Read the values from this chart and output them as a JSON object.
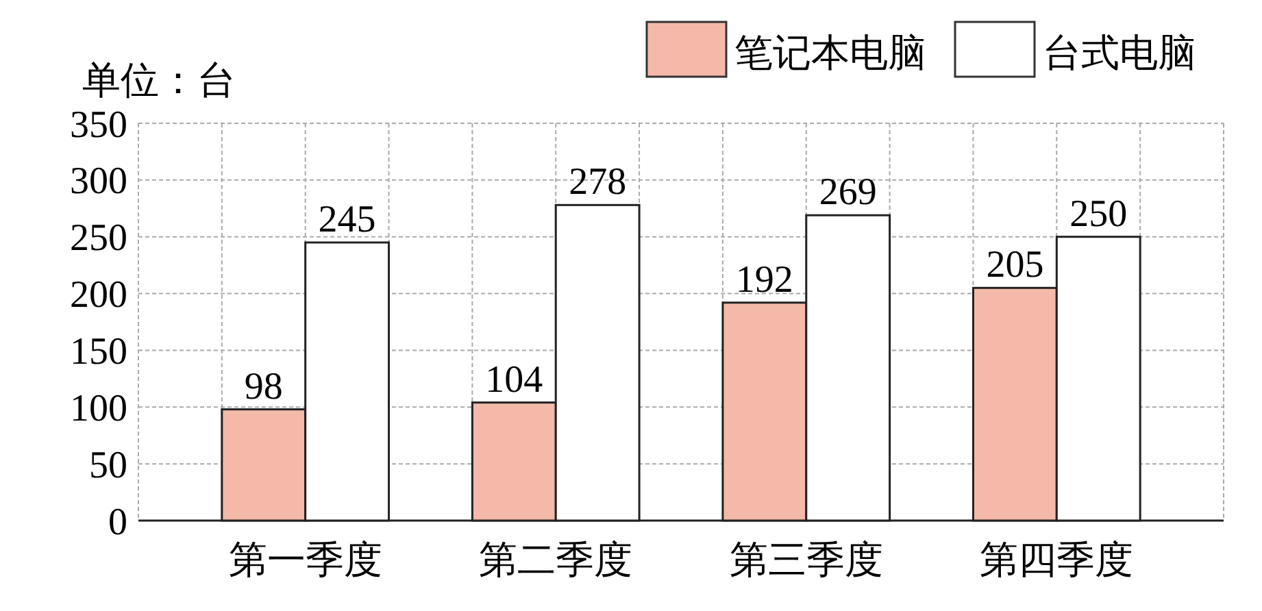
{
  "chart_data": {
    "type": "bar",
    "ylabel": "单位：台",
    "categories": [
      "第一季度",
      "第二季度",
      "第三季度",
      "第四季度"
    ],
    "series": [
      {
        "name": "笔记本电脑",
        "color": "#f4b9a9",
        "values": [
          98,
          104,
          192,
          205
        ]
      },
      {
        "name": "台式电脑",
        "color": "#ffffff",
        "values": [
          245,
          278,
          269,
          250
        ]
      }
    ],
    "ylim": [
      0,
      350
    ],
    "yticks": [
      0,
      50,
      100,
      150,
      200,
      250,
      300,
      350
    ],
    "grid": true,
    "legend": "top right",
    "data_labels": true
  }
}
